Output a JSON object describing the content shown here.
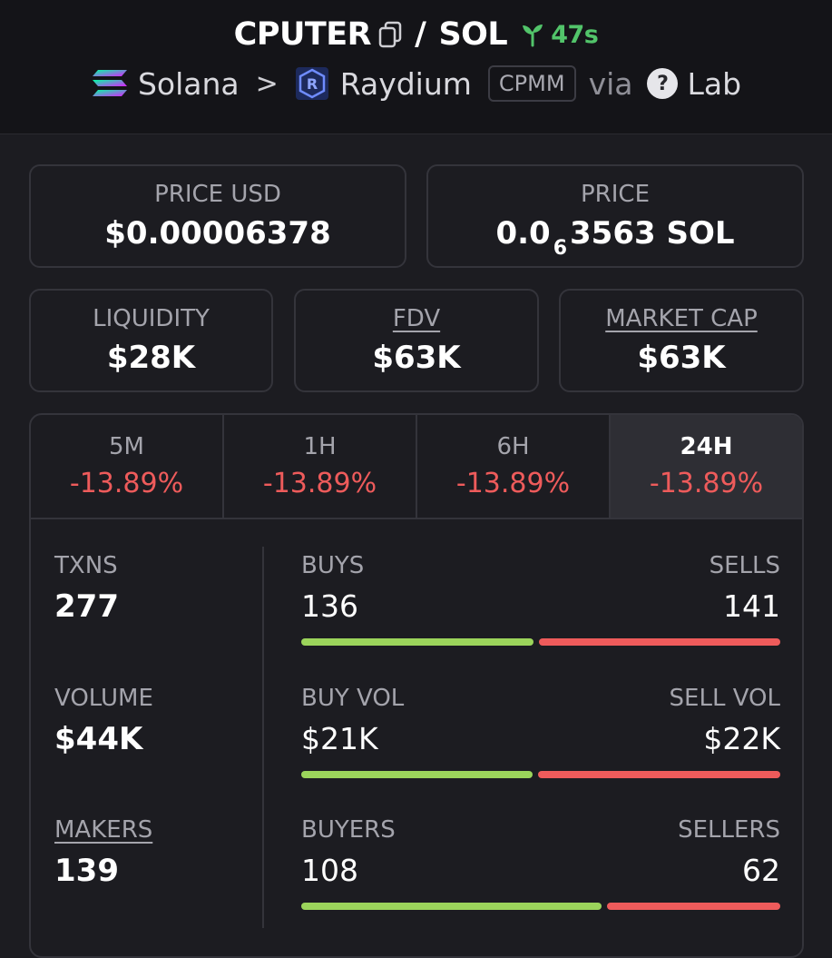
{
  "header": {
    "token": "CPUTER",
    "slash": "/",
    "quote": "SOL",
    "age": "47s",
    "chain": "Solana",
    "chevron": ">",
    "dex": "Raydium",
    "pool_type": "CPMM",
    "via": "via",
    "via_source": "Lab",
    "qmark": "?"
  },
  "price_usd": {
    "label": "PRICE USD",
    "value": "$0.00006378"
  },
  "price_native": {
    "label": "PRICE",
    "prefix": "0.0",
    "zeros": "6",
    "suffix": "3563 SOL"
  },
  "liquidity": {
    "label": "LIQUIDITY",
    "value": "$28K"
  },
  "fdv": {
    "label": "FDV",
    "value": "$63K"
  },
  "market_cap": {
    "label": "MARKET CAP",
    "value": "$63K"
  },
  "timeframes": [
    {
      "label": "5M",
      "change": "-13.89%"
    },
    {
      "label": "1H",
      "change": "-13.89%"
    },
    {
      "label": "6H",
      "change": "-13.89%"
    },
    {
      "label": "24H",
      "change": "-13.89%"
    }
  ],
  "stats": {
    "txns": {
      "label": "TXNS",
      "value": "277"
    },
    "volume": {
      "label": "VOLUME",
      "value": "$44K"
    },
    "makers": {
      "label": "MAKERS",
      "value": "139"
    },
    "buys": {
      "left_label": "BUYS",
      "right_label": "SELLS",
      "left_value": "136",
      "right_value": "141",
      "buy_fraction": 0.491
    },
    "vol": {
      "left_label": "BUY VOL",
      "right_label": "SELL VOL",
      "left_value": "$21K",
      "right_value": "$22K",
      "buy_fraction": 0.488
    },
    "buyers": {
      "left_label": "BUYERS",
      "right_label": "SELLERS",
      "left_value": "108",
      "right_value": "62",
      "buy_fraction": 0.635
    }
  },
  "colors": {
    "green": "#9bd45b",
    "red": "#ee5b5b",
    "age_green": "#52c46a"
  },
  "icons": {
    "copy": "copy-icon",
    "seedling": "seedling-icon",
    "solana": "solana-logo-icon",
    "raydium": "raydium-logo-icon"
  }
}
